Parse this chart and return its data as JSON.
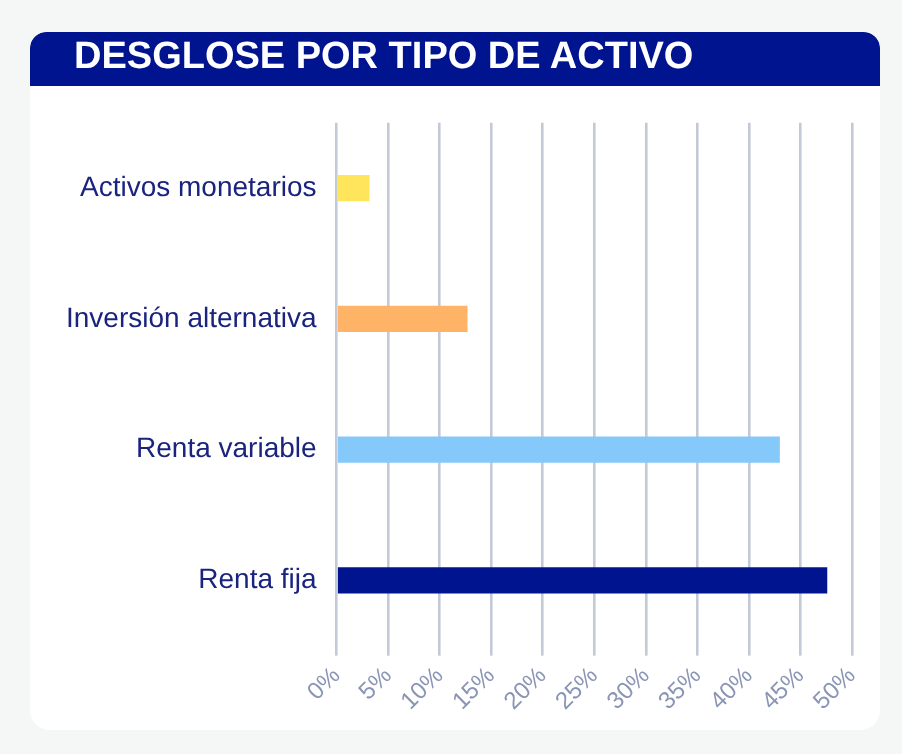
{
  "chart_data": {
    "type": "bar",
    "orientation": "horizontal",
    "title": "DESGLOSE POR TIPO DE ACTIVO",
    "categories": [
      "Activos monetarios",
      "Inversión alternativa",
      "Renta variable",
      "Renta fija"
    ],
    "values": [
      3.2,
      12.7,
      43.0,
      47.6
    ],
    "colors": [
      "#ffe55c",
      "#ffb366",
      "#85c8fa",
      "#001490"
    ],
    "xlim": [
      0,
      50
    ],
    "xticks": [
      {
        "value": 0,
        "label": "0%"
      },
      {
        "value": 5,
        "label": "5%"
      },
      {
        "value": 10,
        "label": "10%"
      },
      {
        "value": 15,
        "label": "15%"
      },
      {
        "value": 20,
        "label": "20%"
      },
      {
        "value": 25,
        "label": "25%"
      },
      {
        "value": 30,
        "label": "30%"
      },
      {
        "value": 35,
        "label": "35%"
      },
      {
        "value": 40,
        "label": "40%"
      },
      {
        "value": 45,
        "label": "45%"
      },
      {
        "value": 50,
        "label": "50%"
      }
    ],
    "grid": "x",
    "legend": false
  }
}
